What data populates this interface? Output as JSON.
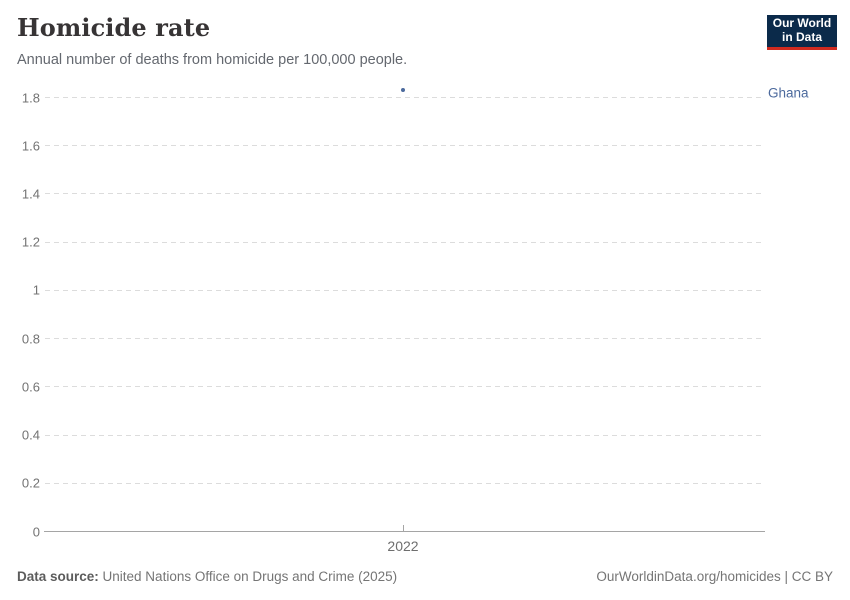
{
  "header": {
    "title": "Homicide rate",
    "subtitle": "Annual number of deaths from homicide per 100,000 people.",
    "logo": {
      "line1": "Our World",
      "line2": "in Data",
      "bg_color": "#0b2a4a",
      "accent_color": "#d12a1f"
    }
  },
  "chart_data": {
    "type": "scatter",
    "title": "Homicide rate",
    "subtitle": "Annual number of deaths from homicide per 100,000 people.",
    "xlabel": "",
    "ylabel": "",
    "x": [
      2022
    ],
    "series": [
      {
        "name": "Ghana",
        "x": [
          2022
        ],
        "values": [
          1.83
        ],
        "color": "#4c6a9d"
      }
    ],
    "x_tick_labels": [
      "2022"
    ],
    "y_ticks": [
      0,
      0.2,
      0.4,
      0.6,
      0.8,
      1,
      1.2,
      1.4,
      1.6,
      1.8
    ],
    "ylim": [
      0,
      1.86
    ],
    "grid": true,
    "legend_position": "right-of-plot",
    "gridline_color": "#dcdcdc",
    "axis_color": "#a5a5a5",
    "tick_label_color": "#737373"
  },
  "footer": {
    "source_label": "Data source:",
    "source_text": " United Nations Office on Drugs and Crime (2025)",
    "link_text": "OurWorldinData.org/homicides | CC BY"
  }
}
